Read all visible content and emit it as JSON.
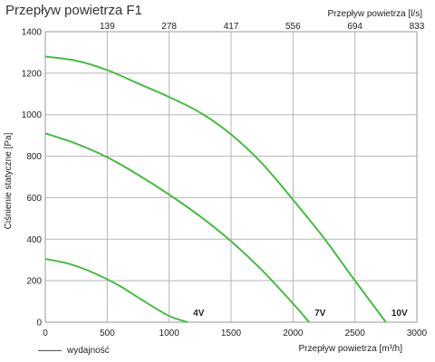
{
  "chart_data": {
    "type": "line",
    "title": "Przepływ powietrza F1",
    "xlabel": "Przepływ powietrza [m³/h]",
    "ylabel": "Ciśnienie statyczne [Pa]",
    "x2label": "Przepływ powietrza [l/s]",
    "xlim": [
      0,
      3000
    ],
    "ylim": [
      0,
      1400
    ],
    "xticks": [
      0,
      500,
      1000,
      1500,
      2000,
      2500,
      3000
    ],
    "yticks": [
      0,
      200,
      400,
      600,
      800,
      1000,
      1200,
      1400
    ],
    "x2ticks": [
      "139",
      "278",
      "417",
      "556",
      "694",
      "833"
    ],
    "grid": true,
    "line_color": "#4ab848",
    "series": [
      {
        "name": "4V",
        "x": [
          0,
          200,
          400,
          600,
          800,
          1000,
          1150
        ],
        "y": [
          305,
          280,
          235,
          175,
          100,
          30,
          0
        ]
      },
      {
        "name": "7V",
        "x": [
          0,
          250,
          500,
          750,
          1000,
          1250,
          1500,
          1750,
          2000,
          2130
        ],
        "y": [
          910,
          860,
          795,
          710,
          615,
          510,
          390,
          250,
          90,
          0
        ]
      },
      {
        "name": "10V",
        "x": [
          0,
          250,
          500,
          750,
          1000,
          1250,
          1500,
          1750,
          2000,
          2250,
          2500,
          2750
        ],
        "y": [
          1280,
          1260,
          1215,
          1150,
          1085,
          1010,
          905,
          765,
          590,
          405,
          200,
          0
        ]
      }
    ],
    "legend": {
      "label": "wydajność",
      "placement": "bottom-left"
    }
  }
}
